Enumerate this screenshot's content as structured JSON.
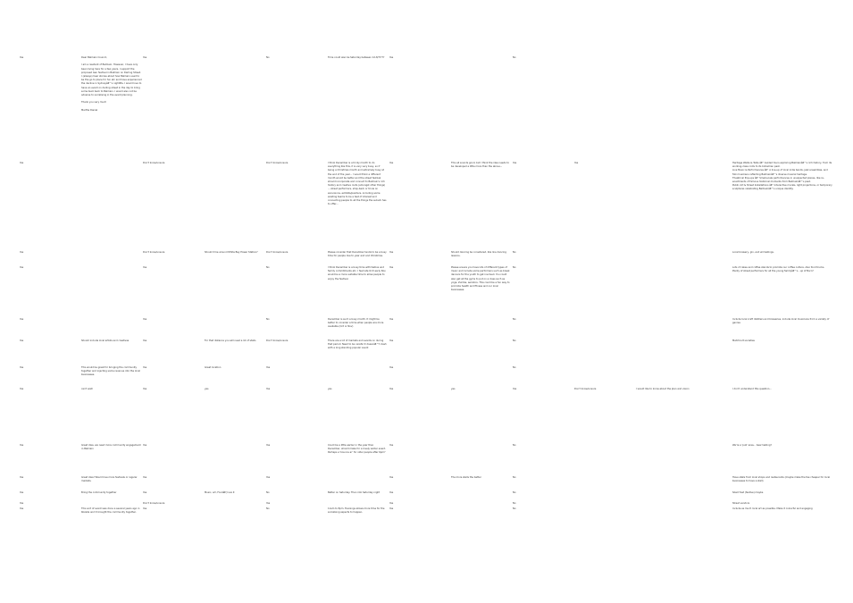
{
  "rows": [
    {
      "cells": [
        {
          "col": 0,
          "text": "Yes"
        },
        {
          "col": 1,
          "text": "Dear Balmain Council,\n\nI am a resident of Balmain. However, I have only been living here for a few years. I support the proposed Gen festival in Balmain on Darling Street. I (always) hear stories about how Balmain used to be the go to place for fun etc and have experienced the decline in Sydneyâ€™s nightlife. I would love to have an event on darling street in the day to bring some buzz back to Balmain. I would also not be adverse to socialising in the event planning.\n\nThank you very much\n\nMartha Daniel"
        },
        {
          "col": 2,
          "text": "Yes"
        },
        {
          "col": 4,
          "text": "No"
        },
        {
          "col": 5,
          "text": "Time could also be Saturday between 12-8/?????"
        },
        {
          "col": 6,
          "text": "Yes"
        },
        {
          "col": 8,
          "text": "No"
        }
      ]
    },
    {
      "cells": [
        {
          "col": 0,
          "text": "Yes"
        },
        {
          "col": 2,
          "text": "Don't know/unsure"
        },
        {
          "col": 4,
          "text": "Don't know/unsure"
        },
        {
          "col": 5,
          "text": "I think December is a tricky month to do everything like this, it is very very busy, so if being a Christmas month and extremely busy at the end of the year... I would think a different month would be better and the street festival should incorporate and connect to Balmain's rich history and creative roots (amongst other things) ... street performers, shop-back or trivia on excursions, exhibits/painters, including some existing teams to be a test of interest and connecting people to all the things the suburb has to offer..."
        },
        {
          "col": 6,
          "text": "Yes"
        },
        {
          "col": 7,
          "text": "This all sounds good, but I think the idea needs to be developed a little more than the above..."
        },
        {
          "col": 8,
          "text": "Yes"
        },
        {
          "col": 9,
          "text": "Yes"
        },
        {
          "col": 12,
          "text": "Heritage Walks & Talks â€“ Guided tours exploring Balmainâ€™s rich history, from its working-class roots to its bohemian past.\nLive Music & Performances â€“ A line-up of local indie bands, jazz ensembles, and folk musicians reflecting Balmainâ€™s diverse musical heritage.\nTheatrical Pop-ups â€“ Small-scale performances in unexpected places, like re-enactments of famous historical moments from Balmainâ€™s past.\nPublic Art & Street Installations â€“ Interactive murals, light projections, or temporary sculptures celebrating Balmainâ€™s unique identity."
        }
      ]
    },
    {
      "cells": [
        {
          "col": 0,
          "text": "Yes"
        },
        {
          "col": 2,
          "text": "Don't know/unsure"
        },
        {
          "col": 3,
          "text": "Should it be around White Bay Power Station?"
        },
        {
          "col": 4,
          "text": "Don't know/unsure"
        },
        {
          "col": 5,
          "text": "Please consider that December tends to be a busy time for people due to year end and Christmas."
        },
        {
          "col": 6,
          "text": "Yes"
        },
        {
          "col": 7,
          "text": "Should dancing be considered, like line dancing lessons."
        },
        {
          "col": 8,
          "text": "No"
        },
        {
          "col": 12,
          "text": "Local brewery, gin, and wii tastings."
        }
      ]
    },
    {
      "cells": [
        {
          "col": 0,
          "text": "Yes"
        },
        {
          "col": 2,
          "text": "Yes"
        },
        {
          "col": 4,
          "text": "No"
        },
        {
          "col": 5,
          "text": "I think December is a busy time with festive and family commitments etc. I feel late Oct/ early Nov would be a more suitable time to allow people to enjoy the festival."
        },
        {
          "col": 6,
          "text": "Yes"
        },
        {
          "col": 7,
          "text": "Please ensure you have lots of different types of music and include some performers such as break dancers for the youth to get involved. You could also get all the gyms to put on a class such as yoga, Zumba, aerobics. This could be a fun way to promote health and fitness and our local businesses."
        },
        {
          "col": 8,
          "text": "No"
        },
        {
          "col": 12,
          "text": "Lots of cakes and coffee stands to promote our coffee culture. Also food trucks. Plenty of street performers for all the young familyâ€™s - up of Burn?"
        }
      ]
    },
    {
      "cells": [
        {
          "col": 0,
          "text": "Yes"
        },
        {
          "col": 2,
          "text": "Yes"
        },
        {
          "col": 4,
          "text": "No"
        },
        {
          "col": 5,
          "text": "December is such a busy month. It might be better to consider a time when people are more available (Oct or Nov)"
        },
        {
          "col": 6,
          "text": "Yes"
        },
        {
          "col": 8,
          "text": "No"
        },
        {
          "col": 12,
          "text": "Include local craft distillers and breweries, include local musicians from a variety of genres"
        }
      ]
    },
    {
      "cells": [
        {
          "col": 0,
          "text": "Yes"
        },
        {
          "col": 1,
          "text": "Should include local artists and creatives"
        },
        {
          "col": 2,
          "text": "Yes"
        },
        {
          "col": 3,
          "text": "For that distance you will need a lot of stalls"
        },
        {
          "col": 4,
          "text": "Don't know/unsure"
        },
        {
          "col": 5,
          "text": "There are a lot of markets and events on during that period. Need to be careful it doesnâ€™t clash with a long standing popular event"
        },
        {
          "col": 6,
          "text": "Yes"
        },
        {
          "col": 8,
          "text": "No"
        },
        {
          "col": 12,
          "text": "Matchcult societies"
        }
      ]
    },
    {
      "cells": [
        {
          "col": 0,
          "text": "Yes"
        },
        {
          "col": 1,
          "text": "This would be great for bringing the community together and injecting some revenue into the local businesses."
        },
        {
          "col": 2,
          "text": "Yes"
        },
        {
          "col": 3,
          "text": "Great location"
        },
        {
          "col": 4,
          "text": "Yes"
        },
        {
          "col": 6,
          "text": "Yes"
        },
        {
          "col": 8,
          "text": "No"
        }
      ]
    },
    {
      "cells": [
        {
          "col": 0,
          "text": "Yes"
        },
        {
          "col": 1,
          "text": "can't wait"
        },
        {
          "col": 2,
          "text": "Yes"
        },
        {
          "col": 3,
          "text": "yes"
        },
        {
          "col": 4,
          "text": "Yes"
        },
        {
          "col": 5,
          "text": "yes"
        },
        {
          "col": 6,
          "text": "Yes"
        },
        {
          "col": 7,
          "text": "yes"
        },
        {
          "col": 8,
          "text": "Yes"
        },
        {
          "col": 9,
          "text": "Don't know/unsure"
        },
        {
          "col": 10,
          "text": "I would like to know about the plan and vision"
        },
        {
          "col": 12,
          "text": "I don't understand this question..."
        }
      ]
    },
    {
      "cells": [
        {
          "col": 0,
          "text": "Yes"
        },
        {
          "col": 1,
          "text": "Great idea, we need more community engagement in Balmain"
        },
        {
          "col": 2,
          "text": "Yes"
        },
        {
          "col": 4,
          "text": "Yes"
        },
        {
          "col": 5,
          "text": "Could be a little earlier in the year than December, should make for a lovely winter event. Perhaps a 'bounce ar' for older people after 6pm?"
        },
        {
          "col": 6,
          "text": "Yes"
        },
        {
          "col": 8,
          "text": "No"
        },
        {
          "col": 12,
          "text": "We're a 'pub' area... beer tasting?"
        }
      ]
    },
    {
      "cells": [
        {
          "col": 0,
          "text": "Yes"
        },
        {
          "col": 1,
          "text": "Great idea! Would love more festivals or regular markets."
        },
        {
          "col": 2,
          "text": "Yes"
        },
        {
          "col": 4,
          "text": "Yes"
        },
        {
          "col": 6,
          "text": "Yes"
        },
        {
          "col": 7,
          "text": "The more stalls the better"
        },
        {
          "col": 8,
          "text": "No"
        },
        {
          "col": 12,
          "text": "Have stalls from local shops and restaurants (maybe make the fee cheaper for local businesses to have a stall)"
        }
      ]
    },
    {
      "cells": [
        {
          "col": 0,
          "text": "Yes"
        },
        {
          "col": 1,
          "text": "Bring the community together"
        },
        {
          "col": 2,
          "text": "Yes"
        },
        {
          "col": 3,
          "text": "Music, art, Foodâ€¦ love it"
        },
        {
          "col": 4,
          "text": "No"
        },
        {
          "col": 5,
          "text": "Better on Saturday. Then into Saturday night"
        },
        {
          "col": 6,
          "text": "Yes"
        },
        {
          "col": 8,
          "text": "No"
        },
        {
          "col": 12,
          "text": "Silent fest (festive) maybe"
        }
      ]
    },
    {
      "cells": [
        {
          "col": 0,
          "text": "Yes"
        },
        {
          "col": 2,
          "text": "Don't know/unsure"
        },
        {
          "col": 4,
          "text": "Yes"
        },
        {
          "col": 6,
          "text": "Yes"
        },
        {
          "col": 8,
          "text": "No"
        },
        {
          "col": 12,
          "text": "Street vendors"
        }
      ]
    },
    {
      "cells": [
        {
          "col": 0,
          "text": "Yes"
        },
        {
          "col": 1,
          "text": "This sort of event was done a several years ago in Rozelle and it brought the community together."
        },
        {
          "col": 2,
          "text": "Yes"
        },
        {
          "col": 4,
          "text": "No"
        },
        {
          "col": 5,
          "text": "11am to 8pm. Evenings allows more time for the socialising aspects to happen."
        },
        {
          "col": 6,
          "text": "Yes"
        },
        {
          "col": 8,
          "text": "No"
        },
        {
          "col": 12,
          "text": "Include as much local art as possible. Make it colourful and engaging"
        }
      ]
    }
  ]
}
